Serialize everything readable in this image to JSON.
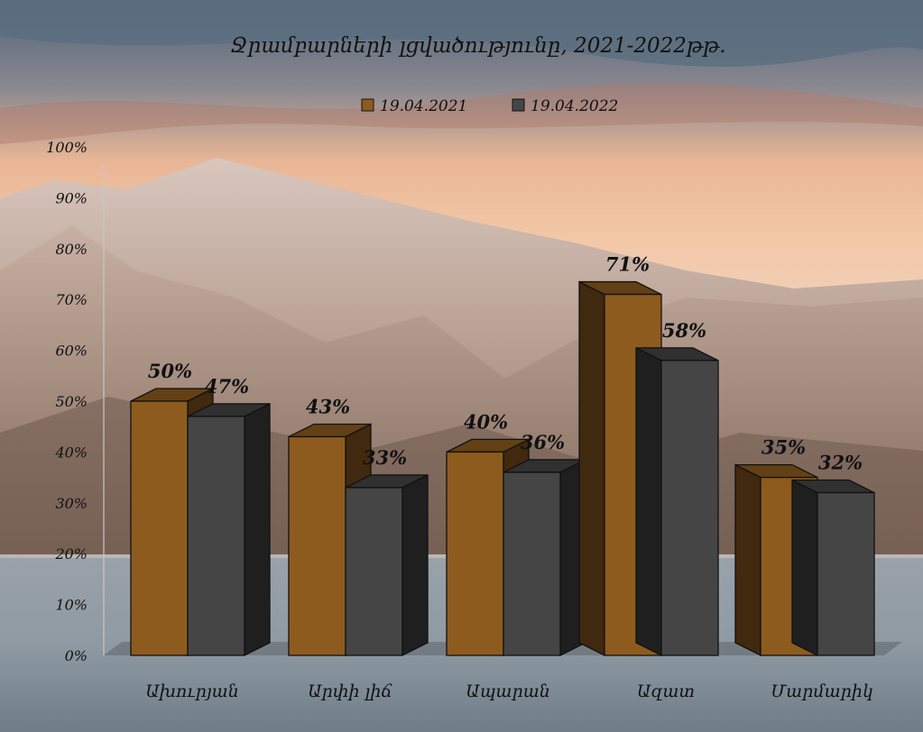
{
  "chart_data": {
    "type": "bar",
    "title": "Ջրամբարների լցվածությունը, 2021-2022թթ.",
    "xlabel": "",
    "ylabel": "",
    "categories": [
      "Ախուրյան",
      "Արփի լիճ",
      "Ապարան",
      "Ազատ",
      "Մարմարիկ"
    ],
    "series": [
      {
        "name": "19.04.2021",
        "values": [
          50,
          43,
          40,
          71,
          35
        ],
        "labels": [
          "50%",
          "43%",
          "40%",
          "71%",
          "35%"
        ],
        "color": "#8E5B1E"
      },
      {
        "name": "19.04.2022",
        "values": [
          47,
          33,
          36,
          58,
          32
        ],
        "labels": [
          "47%",
          "33%",
          "36%",
          "58%",
          "32%"
        ],
        "color": "#454545"
      }
    ],
    "ylim": [
      0,
      100
    ],
    "yticks": [
      0,
      10,
      20,
      30,
      40,
      50,
      60,
      70,
      80,
      90,
      100
    ],
    "ytick_labels": [
      "0%",
      "10%",
      "20%",
      "30%",
      "40%",
      "50%",
      "60%",
      "70%",
      "80%",
      "90%",
      "100%"
    ],
    "legend_position": "top-center",
    "grid": false,
    "style": "3d"
  }
}
